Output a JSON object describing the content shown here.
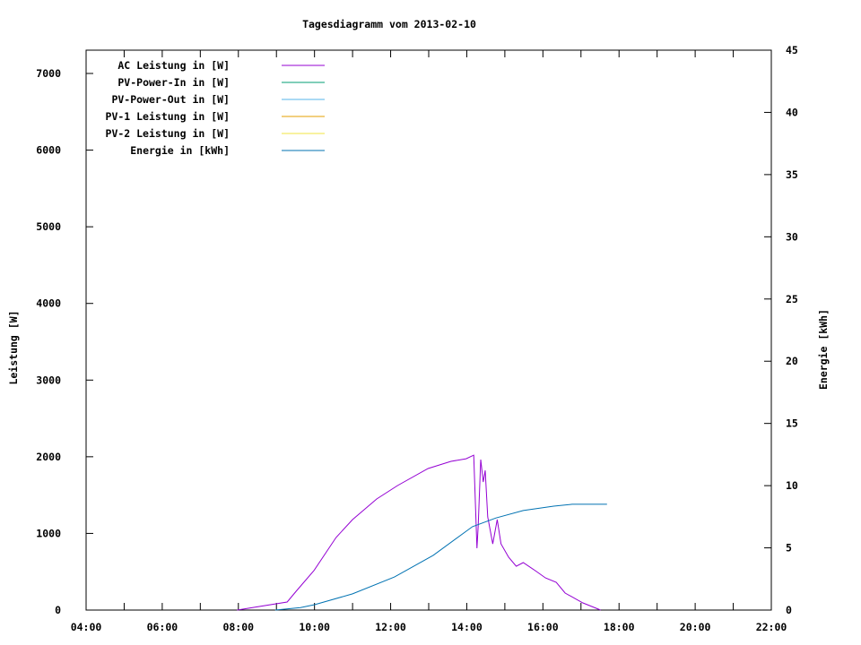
{
  "chart_data": {
    "type": "line",
    "title": "Tagesdiagramm vom 2013-02-10",
    "xlabel": "",
    "ylabel": "Leistung [W]",
    "y2label": "Energie [kWh]",
    "xlim": [
      "04:00",
      "22:00"
    ],
    "ylim": [
      0,
      7300
    ],
    "y2lim": [
      0,
      45
    ],
    "x_ticks": [
      "04:00",
      "06:00",
      "08:00",
      "10:00",
      "12:00",
      "14:00",
      "16:00",
      "18:00",
      "20:00",
      "22:00"
    ],
    "y_ticks": [
      0,
      1000,
      2000,
      3000,
      4000,
      5000,
      6000,
      7000
    ],
    "y2_ticks": [
      0,
      5,
      10,
      15,
      20,
      25,
      30,
      35,
      40,
      45
    ],
    "grid": false,
    "legend_position": "top-left",
    "series": [
      {
        "name": "AC Leistung in [W]",
        "color": "#9400d3",
        "axis": "left",
        "x": [
          "07:58",
          "09:17",
          "09:31",
          "09:59",
          "10:34",
          "11:00",
          "11:38",
          "12:11",
          "12:59",
          "13:35",
          "13:59",
          "14:11",
          "14:16",
          "14:18",
          "14:22",
          "14:26",
          "14:29",
          "14:33",
          "14:41",
          "14:48",
          "14:54",
          "15:06",
          "15:18",
          "15:29",
          "15:48",
          "16:04",
          "16:21",
          "16:35",
          "17:03",
          "17:31"
        ],
        "values": [
          0,
          105,
          245,
          514,
          946,
          1180,
          1449,
          1624,
          1846,
          1940,
          1974,
          2021,
          806,
          1100,
          1963,
          1670,
          1822,
          1215,
          864,
          1180,
          864,
          689,
          572,
          619,
          514,
          420,
          362,
          222,
          93,
          0
        ]
      },
      {
        "name": "PV-Power-In in [W]",
        "color": "#009e73",
        "axis": "left",
        "x": [],
        "values": []
      },
      {
        "name": "PV-Power-Out in [W]",
        "color": "#56b4e9",
        "axis": "left",
        "x": [],
        "values": []
      },
      {
        "name": "PV-1 Leistung in [W]",
        "color": "#e69f00",
        "axis": "left",
        "x": [],
        "values": []
      },
      {
        "name": "PV-2 Leistung in [W]",
        "color": "#f0e442",
        "axis": "left",
        "x": [],
        "values": []
      },
      {
        "name": "Energie in [kWh]",
        "color": "#0072b2",
        "axis": "right",
        "x": [
          "08:58",
          "09:38",
          "10:00",
          "11:00",
          "12:06",
          "13:07",
          "14:09",
          "14:46",
          "15:29",
          "16:17",
          "16:46",
          "17:41"
        ],
        "values": [
          0,
          0.2,
          0.43,
          1.3,
          2.66,
          4.4,
          6.7,
          7.4,
          8.0,
          8.35,
          8.5,
          8.5
        ]
      }
    ]
  }
}
